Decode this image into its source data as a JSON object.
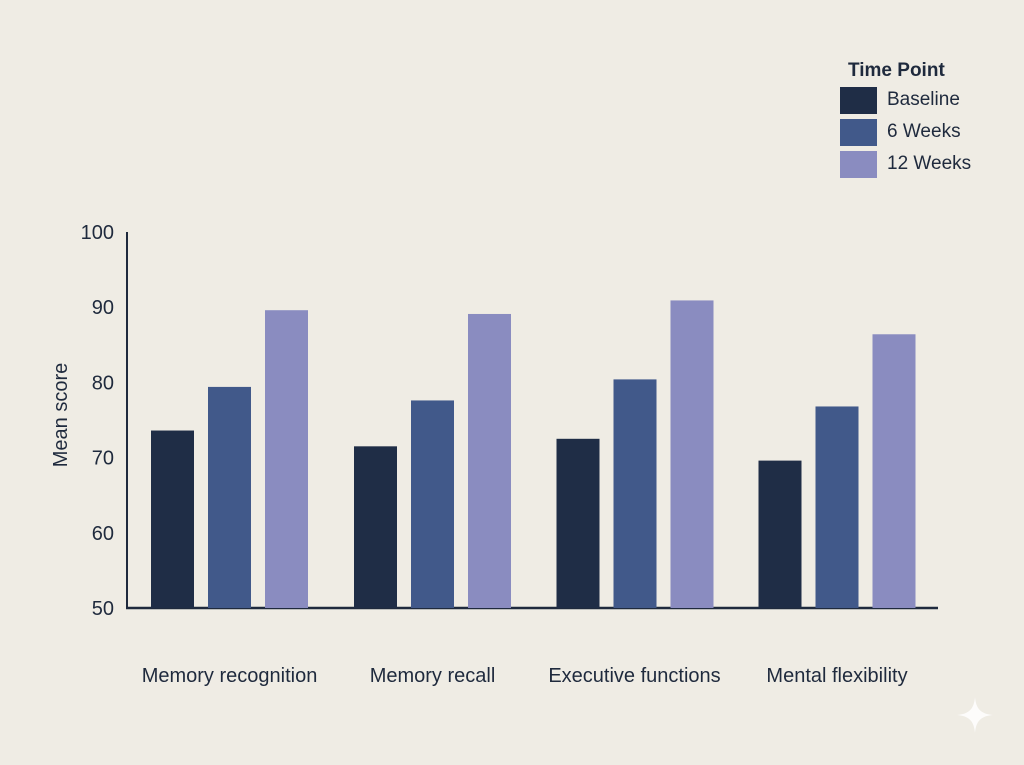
{
  "chart_data": {
    "type": "bar",
    "title": "",
    "xlabel": "",
    "ylabel": "Mean score",
    "ylim": [
      50,
      100
    ],
    "yticks": [
      50,
      60,
      70,
      80,
      90,
      100
    ],
    "grid": false,
    "legend": {
      "title": "Time Point",
      "placement": "top-right"
    },
    "categories": [
      "Memory recognition",
      "Memory recall",
      "Executive functions",
      "Mental flexibility"
    ],
    "series": [
      {
        "name": "Baseline",
        "color": "#1f2d46",
        "values": [
          73.6,
          71.5,
          72.5,
          69.6
        ]
      },
      {
        "name": "6 Weeks",
        "color": "#41598a",
        "values": [
          79.4,
          77.6,
          80.4,
          76.8
        ]
      },
      {
        "name": "12 Weeks",
        "color": "#8a8cc0",
        "values": [
          89.6,
          89.1,
          90.9,
          86.4
        ]
      }
    ]
  },
  "colors": {
    "background": "#efece4",
    "axis": "#1f2a3d",
    "text": "#1f2a3d"
  }
}
